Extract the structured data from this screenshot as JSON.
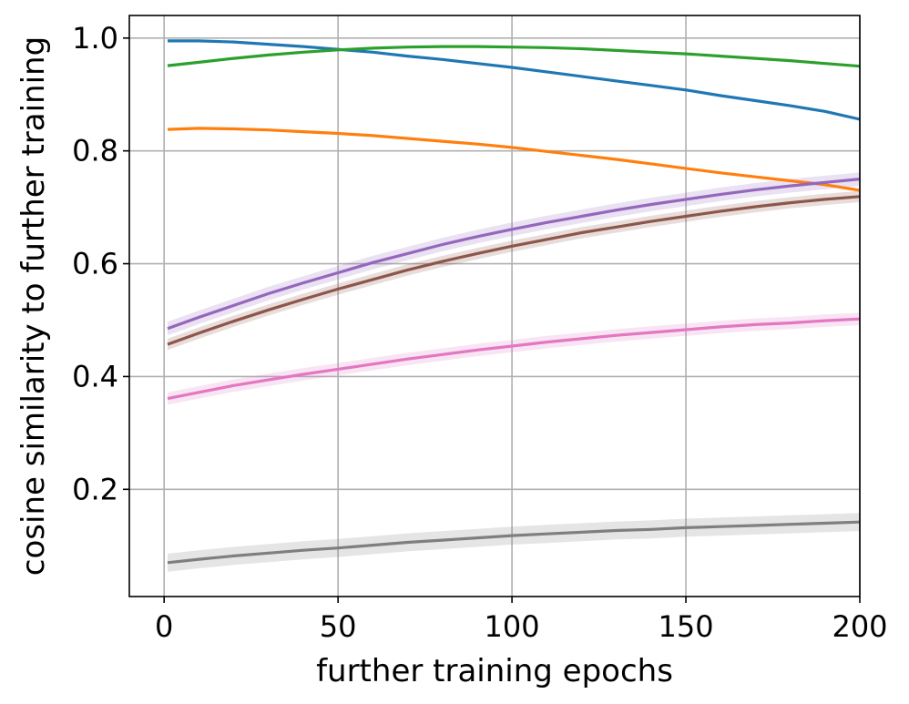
{
  "chart_data": {
    "type": "line",
    "title": "",
    "xlabel": "further training epochs",
    "ylabel": "cosine similarity to further training",
    "xlim": [
      -10,
      200
    ],
    "ylim": [
      0.01,
      1.04
    ],
    "xticks": [
      0,
      50,
      100,
      150,
      200
    ],
    "xtick_labels": [
      "0",
      "50",
      "100",
      "150",
      "200"
    ],
    "yticks": [
      0.2,
      0.4,
      0.6,
      0.8,
      1.0
    ],
    "ytick_labels": [
      "0.2",
      "0.4",
      "0.6",
      "0.8",
      "1.0"
    ],
    "grid": true,
    "legend": "none",
    "x": [
      1,
      10,
      20,
      30,
      40,
      50,
      60,
      70,
      80,
      90,
      100,
      110,
      120,
      130,
      140,
      150,
      160,
      170,
      180,
      190,
      200
    ],
    "series": [
      {
        "color": "#1f77b4",
        "values": [
          0.995,
          0.995,
          0.993,
          0.989,
          0.985,
          0.98,
          0.975,
          0.968,
          0.962,
          0.955,
          0.948,
          0.94,
          0.932,
          0.924,
          0.916,
          0.908,
          0.898,
          0.889,
          0.88,
          0.87,
          0.856
        ],
        "band": 0.002
      },
      {
        "color": "#ff7f0e",
        "values": [
          0.838,
          0.84,
          0.839,
          0.837,
          0.834,
          0.831,
          0.827,
          0.822,
          0.817,
          0.812,
          0.806,
          0.799,
          0.792,
          0.785,
          0.777,
          0.769,
          0.761,
          0.754,
          0.747,
          0.74,
          0.73
        ],
        "band": 0.002
      },
      {
        "color": "#2ca02c",
        "values": [
          0.951,
          0.957,
          0.964,
          0.97,
          0.975,
          0.979,
          0.982,
          0.984,
          0.985,
          0.985,
          0.984,
          0.983,
          0.981,
          0.978,
          0.975,
          0.972,
          0.968,
          0.964,
          0.96,
          0.955,
          0.95
        ],
        "band": 0.002
      },
      {
        "color": "#9467bd",
        "values": [
          0.485,
          0.505,
          0.526,
          0.547,
          0.566,
          0.584,
          0.602,
          0.618,
          0.634,
          0.648,
          0.661,
          0.673,
          0.684,
          0.695,
          0.705,
          0.714,
          0.723,
          0.731,
          0.738,
          0.744,
          0.75
        ],
        "band": 0.012
      },
      {
        "color": "#8c564b",
        "values": [
          0.457,
          0.477,
          0.498,
          0.518,
          0.537,
          0.555,
          0.572,
          0.589,
          0.604,
          0.618,
          0.631,
          0.643,
          0.655,
          0.665,
          0.675,
          0.684,
          0.693,
          0.701,
          0.708,
          0.714,
          0.719
        ],
        "band": 0.01
      },
      {
        "color": "#e377c2",
        "values": [
          0.361,
          0.372,
          0.384,
          0.394,
          0.404,
          0.413,
          0.422,
          0.431,
          0.439,
          0.447,
          0.454,
          0.461,
          0.467,
          0.473,
          0.478,
          0.483,
          0.488,
          0.492,
          0.495,
          0.499,
          0.502
        ],
        "band": 0.011
      },
      {
        "color": "#7f7f7f",
        "values": [
          0.07,
          0.076,
          0.082,
          0.087,
          0.092,
          0.096,
          0.101,
          0.106,
          0.11,
          0.114,
          0.118,
          0.121,
          0.124,
          0.127,
          0.129,
          0.132,
          0.134,
          0.136,
          0.138,
          0.14,
          0.142
        ],
        "band": 0.016
      }
    ]
  }
}
